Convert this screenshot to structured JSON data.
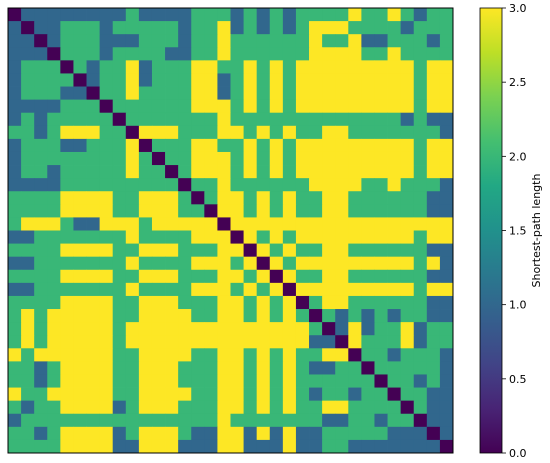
{
  "chart_data": {
    "type": "heatmap",
    "title": "",
    "xlabel": "",
    "ylabel": "",
    "n": 34,
    "colormap": "viridis",
    "grid": false,
    "colorbar": {
      "label": "Shortest-path length",
      "range": [
        0,
        3
      ],
      "ticks": [
        0.0,
        0.5,
        1.0,
        1.5,
        2.0,
        2.5,
        3.0
      ],
      "tick_labels": [
        "0.0",
        "0.5",
        "1.0",
        "1.5",
        "2.0",
        "2.5",
        "3.0"
      ]
    },
    "matrix": [
      [
        0,
        1,
        1,
        1,
        1,
        1,
        1,
        1,
        1,
        2,
        1,
        1,
        1,
        1,
        2,
        2,
        2,
        1,
        2,
        1,
        2,
        1,
        2,
        2,
        2,
        2,
        3,
        2,
        2,
        3,
        2,
        1,
        2,
        2
      ],
      [
        1,
        0,
        1,
        1,
        2,
        2,
        2,
        1,
        2,
        2,
        2,
        2,
        2,
        1,
        2,
        2,
        3,
        1,
        2,
        1,
        2,
        1,
        2,
        3,
        3,
        3,
        2,
        2,
        2,
        2,
        1,
        2,
        2,
        2
      ],
      [
        1,
        1,
        0,
        1,
        2,
        2,
        2,
        1,
        1,
        1,
        2,
        2,
        2,
        1,
        2,
        2,
        3,
        2,
        2,
        2,
        2,
        2,
        2,
        3,
        2,
        2,
        3,
        1,
        1,
        2,
        2,
        2,
        1,
        2
      ],
      [
        1,
        1,
        1,
        0,
        2,
        2,
        2,
        1,
        2,
        2,
        2,
        2,
        1,
        1,
        2,
        2,
        3,
        2,
        2,
        2,
        2,
        2,
        2,
        3,
        3,
        3,
        3,
        2,
        2,
        3,
        2,
        2,
        2,
        2
      ],
      [
        1,
        2,
        2,
        2,
        0,
        2,
        1,
        2,
        2,
        3,
        1,
        2,
        2,
        2,
        3,
        3,
        2,
        2,
        3,
        2,
        3,
        2,
        3,
        3,
        3,
        3,
        4,
        3,
        3,
        4,
        3,
        2,
        3,
        3
      ],
      [
        1,
        2,
        2,
        2,
        2,
        0,
        1,
        2,
        2,
        3,
        1,
        2,
        2,
        2,
        3,
        3,
        1,
        2,
        3,
        2,
        3,
        2,
        3,
        3,
        3,
        3,
        4,
        3,
        3,
        4,
        3,
        2,
        3,
        3
      ],
      [
        1,
        2,
        2,
        2,
        1,
        1,
        0,
        2,
        2,
        3,
        2,
        2,
        2,
        2,
        3,
        3,
        1,
        2,
        3,
        2,
        3,
        2,
        3,
        3,
        3,
        3,
        4,
        3,
        3,
        4,
        3,
        2,
        3,
        3
      ],
      [
        1,
        1,
        1,
        1,
        2,
        2,
        2,
        0,
        2,
        2,
        2,
        2,
        2,
        2,
        3,
        3,
        3,
        2,
        3,
        2,
        3,
        2,
        3,
        3,
        3,
        3,
        4,
        3,
        3,
        4,
        3,
        2,
        3,
        3
      ],
      [
        1,
        2,
        1,
        2,
        2,
        2,
        2,
        2,
        0,
        2,
        2,
        2,
        2,
        2,
        2,
        2,
        3,
        2,
        2,
        2,
        2,
        2,
        2,
        2,
        2,
        2,
        2,
        2,
        2,
        2,
        1,
        2,
        1,
        1
      ],
      [
        2,
        2,
        1,
        2,
        3,
        3,
        3,
        2,
        2,
        0,
        3,
        3,
        3,
        2,
        2,
        2,
        4,
        3,
        2,
        3,
        2,
        3,
        2,
        2,
        3,
        3,
        2,
        2,
        2,
        2,
        2,
        2,
        2,
        1
      ],
      [
        1,
        2,
        2,
        2,
        1,
        1,
        2,
        2,
        2,
        3,
        0,
        2,
        2,
        2,
        3,
        3,
        2,
        2,
        3,
        2,
        3,
        2,
        3,
        3,
        3,
        3,
        4,
        3,
        3,
        4,
        3,
        2,
        3,
        3
      ],
      [
        1,
        2,
        2,
        2,
        2,
        2,
        2,
        2,
        2,
        3,
        2,
        0,
        2,
        2,
        3,
        3,
        3,
        2,
        3,
        2,
        3,
        2,
        3,
        3,
        3,
        3,
        4,
        3,
        3,
        4,
        3,
        2,
        3,
        3
      ],
      [
        1,
        2,
        2,
        1,
        2,
        2,
        2,
        2,
        2,
        3,
        2,
        2,
        0,
        2,
        3,
        3,
        3,
        2,
        3,
        2,
        3,
        2,
        3,
        3,
        3,
        3,
        4,
        3,
        3,
        4,
        3,
        2,
        3,
        3
      ],
      [
        1,
        1,
        1,
        1,
        2,
        2,
        2,
        2,
        2,
        2,
        2,
        2,
        2,
        0,
        2,
        2,
        3,
        2,
        2,
        2,
        2,
        2,
        2,
        3,
        3,
        3,
        3,
        2,
        2,
        3,
        2,
        2,
        2,
        1
      ],
      [
        2,
        2,
        2,
        2,
        3,
        3,
        3,
        3,
        2,
        2,
        3,
        3,
        3,
        2,
        0,
        2,
        4,
        3,
        2,
        3,
        2,
        3,
        2,
        2,
        3,
        3,
        2,
        2,
        2,
        2,
        2,
        2,
        1,
        1
      ],
      [
        2,
        2,
        2,
        2,
        3,
        3,
        3,
        3,
        2,
        2,
        3,
        3,
        3,
        2,
        2,
        0,
        4,
        3,
        2,
        3,
        2,
        3,
        2,
        2,
        3,
        3,
        2,
        2,
        2,
        2,
        2,
        2,
        1,
        1
      ],
      [
        2,
        3,
        3,
        3,
        2,
        1,
        1,
        3,
        3,
        4,
        2,
        3,
        3,
        3,
        4,
        4,
        0,
        3,
        4,
        3,
        4,
        3,
        4,
        4,
        4,
        4,
        5,
        4,
        4,
        5,
        4,
        3,
        4,
        4
      ],
      [
        1,
        1,
        2,
        2,
        2,
        2,
        2,
        2,
        2,
        3,
        2,
        2,
        2,
        2,
        3,
        3,
        3,
        0,
        3,
        2,
        3,
        2,
        3,
        3,
        3,
        3,
        4,
        3,
        3,
        4,
        3,
        2,
        3,
        3
      ],
      [
        2,
        2,
        2,
        2,
        3,
        3,
        3,
        3,
        2,
        2,
        3,
        3,
        3,
        2,
        2,
        2,
        4,
        3,
        0,
        3,
        2,
        3,
        2,
        2,
        3,
        3,
        2,
        2,
        2,
        2,
        2,
        2,
        1,
        1
      ],
      [
        1,
        1,
        2,
        2,
        2,
        2,
        2,
        2,
        2,
        3,
        2,
        2,
        2,
        2,
        3,
        3,
        3,
        2,
        3,
        0,
        3,
        2,
        3,
        3,
        3,
        3,
        4,
        3,
        3,
        4,
        3,
        2,
        3,
        1
      ],
      [
        2,
        2,
        2,
        2,
        3,
        3,
        3,
        3,
        2,
        2,
        3,
        3,
        3,
        2,
        2,
        2,
        4,
        3,
        2,
        3,
        0,
        3,
        2,
        2,
        3,
        3,
        2,
        2,
        2,
        2,
        2,
        2,
        1,
        1
      ],
      [
        1,
        1,
        2,
        2,
        2,
        2,
        2,
        2,
        2,
        3,
        2,
        2,
        2,
        2,
        3,
        3,
        3,
        2,
        3,
        2,
        3,
        0,
        3,
        3,
        3,
        3,
        4,
        3,
        3,
        4,
        3,
        2,
        3,
        3
      ],
      [
        2,
        2,
        2,
        2,
        3,
        3,
        3,
        3,
        2,
        2,
        3,
        3,
        3,
        2,
        2,
        2,
        4,
        3,
        2,
        3,
        2,
        3,
        0,
        2,
        3,
        3,
        2,
        2,
        2,
        2,
        2,
        2,
        1,
        1
      ],
      [
        2,
        3,
        2,
        3,
        3,
        3,
        3,
        3,
        2,
        2,
        3,
        3,
        3,
        3,
        2,
        2,
        4,
        3,
        2,
        3,
        2,
        3,
        2,
        0,
        2,
        1,
        2,
        1,
        2,
        1,
        2,
        2,
        1,
        1
      ],
      [
        2,
        3,
        2,
        3,
        3,
        3,
        3,
        3,
        2,
        3,
        3,
        3,
        3,
        3,
        3,
        3,
        4,
        3,
        3,
        3,
        3,
        3,
        3,
        2,
        0,
        1,
        3,
        1,
        2,
        2,
        3,
        1,
        2,
        2
      ],
      [
        2,
        3,
        2,
        3,
        3,
        3,
        3,
        3,
        2,
        3,
        3,
        3,
        3,
        3,
        3,
        3,
        4,
        3,
        3,
        3,
        3,
        3,
        3,
        1,
        1,
        0,
        3,
        2,
        2,
        2,
        3,
        1,
        2,
        2
      ],
      [
        3,
        2,
        3,
        3,
        4,
        4,
        4,
        4,
        2,
        2,
        4,
        4,
        4,
        3,
        2,
        2,
        5,
        4,
        2,
        4,
        2,
        4,
        2,
        2,
        3,
        3,
        0,
        2,
        2,
        1,
        2,
        2,
        2,
        1
      ],
      [
        2,
        2,
        1,
        2,
        3,
        3,
        3,
        3,
        2,
        2,
        3,
        3,
        3,
        2,
        2,
        2,
        4,
        3,
        2,
        3,
        2,
        3,
        2,
        1,
        1,
        2,
        2,
        0,
        2,
        2,
        2,
        2,
        2,
        1
      ],
      [
        2,
        2,
        1,
        2,
        3,
        3,
        3,
        3,
        2,
        2,
        3,
        3,
        3,
        2,
        2,
        2,
        4,
        3,
        2,
        3,
        2,
        3,
        2,
        2,
        2,
        2,
        2,
        2,
        0,
        2,
        2,
        1,
        2,
        1
      ],
      [
        3,
        2,
        2,
        3,
        4,
        4,
        4,
        4,
        2,
        2,
        4,
        4,
        4,
        3,
        2,
        2,
        5,
        4,
        2,
        4,
        2,
        4,
        2,
        1,
        2,
        2,
        1,
        2,
        2,
        0,
        2,
        2,
        1,
        1
      ],
      [
        2,
        1,
        2,
        2,
        3,
        3,
        3,
        3,
        1,
        2,
        3,
        3,
        3,
        2,
        2,
        2,
        4,
        3,
        2,
        3,
        2,
        3,
        2,
        2,
        3,
        3,
        2,
        2,
        2,
        2,
        0,
        2,
        1,
        1
      ],
      [
        1,
        2,
        2,
        2,
        2,
        2,
        2,
        2,
        2,
        2,
        2,
        2,
        2,
        2,
        2,
        2,
        3,
        2,
        2,
        2,
        2,
        2,
        2,
        2,
        1,
        1,
        2,
        2,
        1,
        2,
        2,
        0,
        1,
        1
      ],
      [
        2,
        2,
        1,
        2,
        3,
        3,
        3,
        3,
        1,
        2,
        3,
        3,
        3,
        2,
        1,
        1,
        4,
        3,
        1,
        3,
        1,
        3,
        1,
        1,
        2,
        2,
        2,
        2,
        2,
        1,
        1,
        1,
        0,
        1
      ],
      [
        2,
        2,
        2,
        2,
        3,
        3,
        3,
        3,
        1,
        1,
        3,
        3,
        3,
        1,
        1,
        1,
        4,
        3,
        1,
        1,
        1,
        3,
        1,
        1,
        2,
        2,
        1,
        1,
        1,
        1,
        1,
        1,
        1,
        0
      ]
    ]
  }
}
